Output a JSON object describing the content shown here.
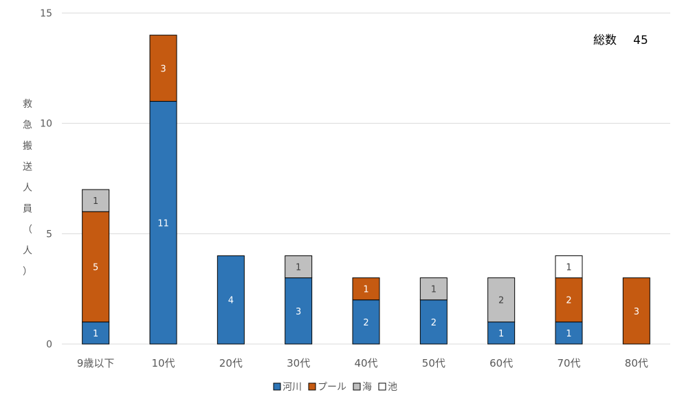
{
  "chart_data": {
    "type": "bar",
    "stacked": true,
    "categories": [
      "9歳以下",
      "10代",
      "20代",
      "30代",
      "40代",
      "50代",
      "60代",
      "70代",
      "80代"
    ],
    "series": [
      {
        "name": "河川",
        "values": [
          1,
          11,
          4,
          3,
          2,
          2,
          1,
          1,
          0
        ],
        "color": "#2e75b6"
      },
      {
        "name": "プール",
        "values": [
          5,
          3,
          0,
          0,
          1,
          0,
          0,
          2,
          3
        ],
        "color": "#c55a11"
      },
      {
        "name": "海",
        "values": [
          1,
          0,
          0,
          1,
          0,
          1,
          2,
          0,
          0
        ],
        "color": "#bfbfbf"
      },
      {
        "name": "池",
        "values": [
          0,
          0,
          0,
          0,
          0,
          0,
          0,
          1,
          0
        ],
        "color": "#ffffff"
      }
    ],
    "ylabel": "救急搬送人員（人）",
    "ylim": [
      0,
      15
    ],
    "yticks": [
      0,
      5,
      10,
      15
    ],
    "grid": true,
    "legend_position": "bottom",
    "annotation": {
      "label": "総数",
      "value": "45"
    }
  },
  "colors": {
    "label_on_dark": "#ffffff",
    "label_on_light": "#404040",
    "grid": "#d9d9d9",
    "axis_text": "#595959"
  }
}
